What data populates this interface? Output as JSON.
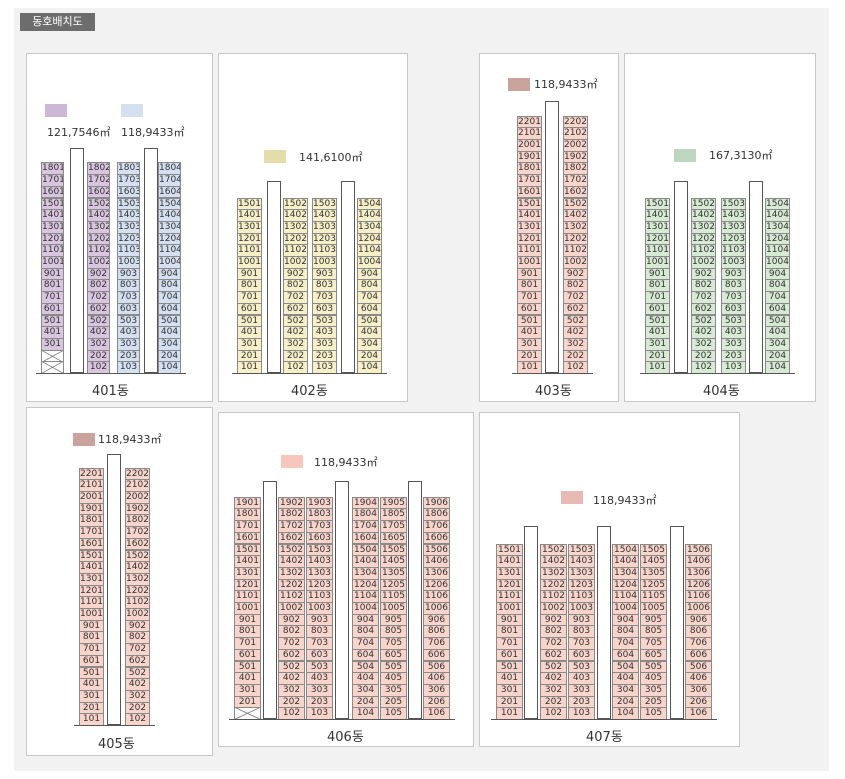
{
  "header": {
    "title": "동호배치도"
  },
  "colors": {
    "purple": "#d9c5e0",
    "blue": "#d4e0f2",
    "yellow": "#f7efc8",
    "green": "#d7ead3",
    "pink": "#f8d4cb",
    "legend_purple": "#cdb6d6",
    "legend_blue": "#d4e0f2",
    "legend_yellow": "#e4dcaa",
    "legend_green": "#bcd6c0",
    "legend_rose": "#caa39d",
    "legend_pink": "#f7c7bd",
    "legend_pink2": "#e9b9b4"
  },
  "buildings": [
    {
      "id": "401",
      "label": "401동",
      "legend": [
        {
          "color": "legend_purple",
          "area": "121,7546㎡"
        },
        {
          "color": "legend_blue",
          "area": "118,9433㎡"
        }
      ]
    },
    {
      "id": "402",
      "label": "402동",
      "legend": [
        {
          "color": "legend_yellow",
          "area": "141,6100㎡"
        }
      ]
    },
    {
      "id": "403",
      "label": "403동",
      "legend": [
        {
          "color": "legend_rose",
          "area": "118,9433㎡"
        }
      ]
    },
    {
      "id": "404",
      "label": "404동",
      "legend": [
        {
          "color": "legend_green",
          "area": "167,3130㎡"
        }
      ]
    },
    {
      "id": "405",
      "label": "405동",
      "legend": [
        {
          "color": "legend_rose",
          "area": "118,9433㎡"
        }
      ]
    },
    {
      "id": "406",
      "label": "406동",
      "legend": [
        {
          "color": "legend_pink",
          "area": "118,9433㎡"
        }
      ]
    },
    {
      "id": "407",
      "label": "407동",
      "legend": [
        {
          "color": "legend_pink2",
          "area": "118,9433㎡"
        }
      ]
    }
  ],
  "units": {
    "401": {
      "columns": [
        {
          "line": "01",
          "top": 18,
          "bottom": 3,
          "color": "purple",
          "pilotis": 2
        },
        {
          "line": "02",
          "top": 18,
          "bottom": 1,
          "color": "purple",
          "pilotis": 0
        },
        {
          "line": "03",
          "top": 18,
          "bottom": 1,
          "color": "blue",
          "pilotis": 0
        },
        {
          "line": "04",
          "top": 18,
          "bottom": 1,
          "color": "blue",
          "pilotis": 0
        }
      ]
    },
    "402": {
      "columns": [
        {
          "line": "01",
          "top": 15,
          "bottom": 1,
          "color": "yellow",
          "pilotis": 0
        },
        {
          "line": "02",
          "top": 15,
          "bottom": 1,
          "color": "yellow",
          "pilotis": 0
        },
        {
          "line": "03",
          "top": 15,
          "bottom": 1,
          "color": "yellow",
          "pilotis": 0
        },
        {
          "line": "04",
          "top": 15,
          "bottom": 1,
          "color": "yellow",
          "pilotis": 0
        }
      ]
    },
    "403": {
      "columns": [
        {
          "line": "01",
          "top": 22,
          "bottom": 1,
          "color": "pink",
          "pilotis": 0
        },
        {
          "line": "02",
          "top": 22,
          "bottom": 1,
          "color": "pink",
          "pilotis": 0
        }
      ]
    },
    "404": {
      "columns": [
        {
          "line": "01",
          "top": 15,
          "bottom": 1,
          "color": "green",
          "pilotis": 0
        },
        {
          "line": "02",
          "top": 15,
          "bottom": 1,
          "color": "green",
          "pilotis": 0
        },
        {
          "line": "03",
          "top": 15,
          "bottom": 1,
          "color": "green",
          "pilotis": 0
        },
        {
          "line": "04",
          "top": 15,
          "bottom": 1,
          "color": "green",
          "pilotis": 0
        }
      ]
    },
    "405": {
      "columns": [
        {
          "line": "01",
          "top": 22,
          "bottom": 1,
          "color": "pink",
          "pilotis": 0
        },
        {
          "line": "02",
          "top": 22,
          "bottom": 1,
          "color": "pink",
          "pilotis": 0
        }
      ]
    },
    "406": {
      "columns": [
        {
          "line": "01",
          "top": 19,
          "bottom": 2,
          "color": "pink",
          "pilotis": 1
        },
        {
          "line": "02",
          "top": 19,
          "bottom": 1,
          "color": "pink",
          "pilotis": 0
        },
        {
          "line": "03",
          "top": 19,
          "bottom": 1,
          "color": "pink",
          "pilotis": 0
        },
        {
          "line": "04",
          "top": 19,
          "bottom": 1,
          "color": "pink",
          "pilotis": 0
        },
        {
          "line": "05",
          "top": 19,
          "bottom": 1,
          "color": "pink",
          "pilotis": 0
        },
        {
          "line": "06",
          "top": 19,
          "bottom": 1,
          "color": "pink",
          "pilotis": 0
        }
      ]
    },
    "407": {
      "columns": [
        {
          "line": "01",
          "top": 15,
          "bottom": 1,
          "color": "pink",
          "pilotis": 0
        },
        {
          "line": "02",
          "top": 15,
          "bottom": 1,
          "color": "pink",
          "pilotis": 0
        },
        {
          "line": "03",
          "top": 15,
          "bottom": 1,
          "color": "pink",
          "pilotis": 0
        },
        {
          "line": "04",
          "top": 15,
          "bottom": 1,
          "color": "pink",
          "pilotis": 0
        },
        {
          "line": "05",
          "top": 15,
          "bottom": 1,
          "color": "pink",
          "pilotis": 0
        },
        {
          "line": "06",
          "top": 15,
          "bottom": 1,
          "color": "pink",
          "pilotis": 0
        }
      ]
    }
  }
}
